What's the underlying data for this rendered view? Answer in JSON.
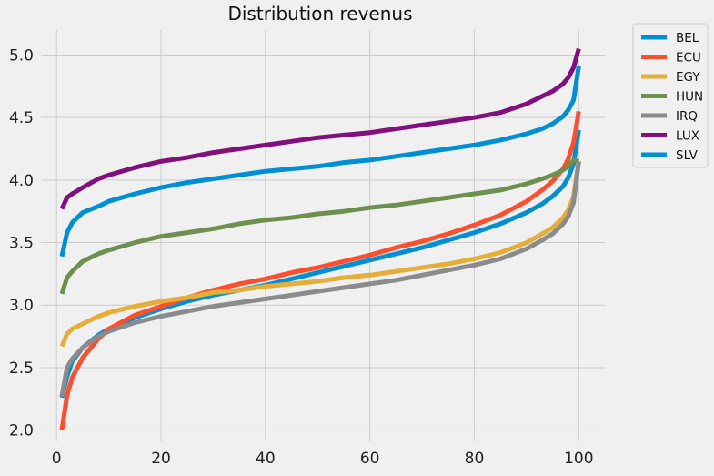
{
  "chart_data": {
    "type": "line",
    "title": "Distribution revenus",
    "xlabel": "",
    "ylabel": "",
    "xlim": [
      -3,
      105
    ],
    "ylim": [
      1.91,
      5.2
    ],
    "xticks": [
      0,
      20,
      40,
      60,
      80,
      100
    ],
    "yticks": [
      2.0,
      2.5,
      3.0,
      3.5,
      4.0,
      4.5,
      5.0
    ],
    "xtick_labels": [
      "0",
      "20",
      "40",
      "60",
      "80",
      "100"
    ],
    "ytick_labels": [
      "2.0",
      "2.5",
      "3.0",
      "3.5",
      "4.0",
      "4.5",
      "5.0"
    ],
    "grid": true,
    "legend_position": "outside-top-right",
    "x": [
      1,
      2,
      3,
      5,
      8,
      10,
      15,
      20,
      25,
      30,
      35,
      40,
      45,
      50,
      55,
      60,
      65,
      70,
      75,
      80,
      85,
      90,
      93,
      95,
      97,
      98,
      99,
      100
    ],
    "series": [
      {
        "name": "BEL",
        "color": "#008fd5",
        "values": [
          2.26,
          2.43,
          2.55,
          2.66,
          2.76,
          2.81,
          2.9,
          2.97,
          3.03,
          3.08,
          3.12,
          3.16,
          3.21,
          3.26,
          3.31,
          3.36,
          3.41,
          3.46,
          3.52,
          3.58,
          3.65,
          3.74,
          3.81,
          3.87,
          3.95,
          4.02,
          4.13,
          4.4
        ]
      },
      {
        "name": "ECU",
        "color": "#fc4f30",
        "values": [
          2.0,
          2.28,
          2.42,
          2.58,
          2.73,
          2.81,
          2.92,
          2.99,
          3.06,
          3.12,
          3.17,
          3.21,
          3.26,
          3.3,
          3.35,
          3.4,
          3.46,
          3.51,
          3.57,
          3.64,
          3.72,
          3.83,
          3.92,
          3.99,
          4.09,
          4.17,
          4.3,
          4.55
        ]
      },
      {
        "name": "EGY",
        "color": "#e5ae38",
        "values": [
          2.67,
          2.77,
          2.81,
          2.85,
          2.91,
          2.94,
          2.99,
          3.03,
          3.06,
          3.1,
          3.12,
          3.15,
          3.17,
          3.19,
          3.22,
          3.24,
          3.27,
          3.3,
          3.33,
          3.37,
          3.42,
          3.5,
          3.57,
          3.62,
          3.7,
          3.76,
          3.87,
          4.15
        ]
      },
      {
        "name": "HUN",
        "color": "#6d904f",
        "values": [
          3.09,
          3.22,
          3.27,
          3.35,
          3.41,
          3.44,
          3.5,
          3.55,
          3.58,
          3.61,
          3.65,
          3.68,
          3.7,
          3.73,
          3.75,
          3.78,
          3.8,
          3.83,
          3.86,
          3.89,
          3.92,
          3.97,
          4.01,
          4.04,
          4.08,
          4.11,
          4.16,
          4.15
        ]
      },
      {
        "name": "IRQ",
        "color": "#8b8b8b",
        "values": [
          2.27,
          2.5,
          2.57,
          2.66,
          2.75,
          2.79,
          2.86,
          2.91,
          2.95,
          2.99,
          3.02,
          3.05,
          3.08,
          3.11,
          3.14,
          3.17,
          3.2,
          3.24,
          3.28,
          3.32,
          3.37,
          3.45,
          3.52,
          3.57,
          3.65,
          3.71,
          3.82,
          4.15
        ]
      },
      {
        "name": "LUX",
        "color": "#810f7c",
        "values": [
          3.77,
          3.86,
          3.89,
          3.94,
          4.01,
          4.04,
          4.1,
          4.15,
          4.18,
          4.22,
          4.25,
          4.28,
          4.31,
          4.34,
          4.36,
          4.38,
          4.41,
          4.44,
          4.47,
          4.5,
          4.54,
          4.61,
          4.67,
          4.71,
          4.77,
          4.82,
          4.9,
          5.05
        ]
      },
      {
        "name": "SLV",
        "color": "#008fd5",
        "values": [
          3.39,
          3.58,
          3.66,
          3.74,
          3.79,
          3.83,
          3.89,
          3.94,
          3.98,
          4.01,
          4.04,
          4.07,
          4.09,
          4.11,
          4.14,
          4.16,
          4.19,
          4.22,
          4.25,
          4.28,
          4.32,
          4.37,
          4.41,
          4.45,
          4.51,
          4.56,
          4.64,
          4.91
        ]
      }
    ]
  }
}
